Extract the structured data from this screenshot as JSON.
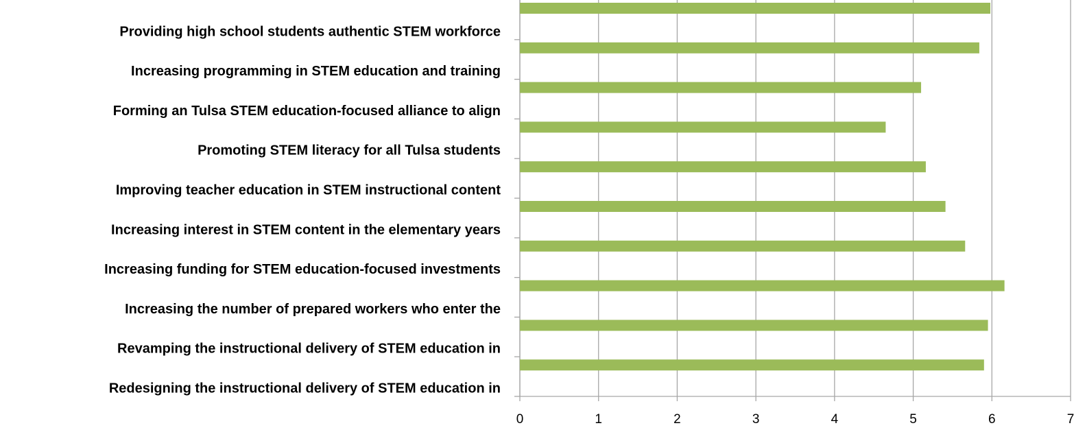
{
  "chart_data": {
    "type": "barh",
    "categories": [
      "Providing high school students authentic STEM workforce",
      "Increasing programming in STEM education and training",
      "Forming an Tulsa STEM education-focused alliance to align",
      "Promoting STEM literacy for all Tulsa students",
      "Improving teacher education in STEM instructional content",
      "Increasing interest in STEM content in the elementary years",
      "Increasing funding for STEM education-focused investments",
      "Increasing the number of prepared workers who enter the",
      "Revamping the instructional delivery of STEM education in",
      "Redesigning the instructional delivery of STEM education in"
    ],
    "values": [
      5.98,
      5.84,
      5.1,
      4.65,
      5.16,
      5.41,
      5.66,
      6.16,
      5.95,
      5.9
    ],
    "color": "#9bbb59",
    "xlim": [
      0,
      7
    ],
    "xticks": [
      0,
      1,
      2,
      3,
      4,
      5,
      6,
      7
    ],
    "grid": true
  }
}
